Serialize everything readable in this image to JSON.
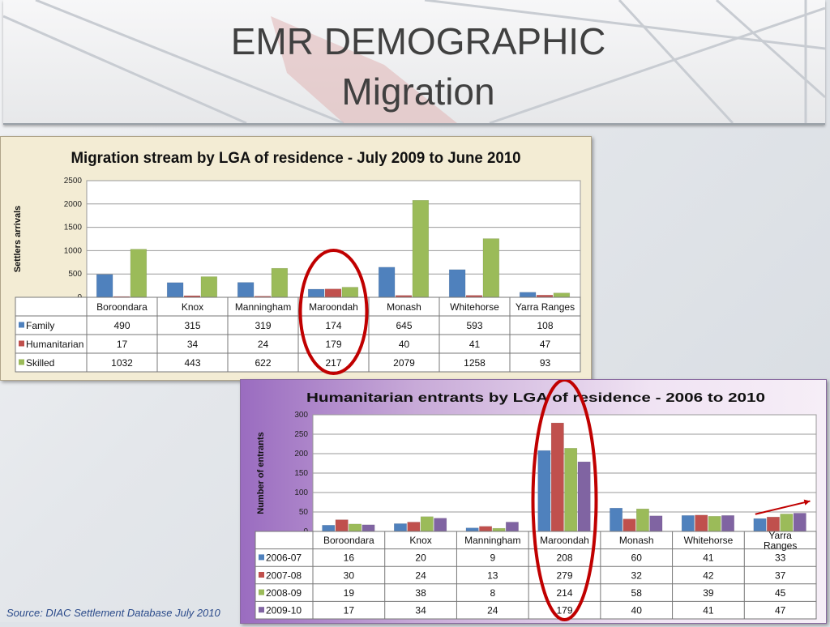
{
  "slide": {
    "title_line1": "EMR DEMOGRAPHIC",
    "title_line2": "Migration",
    "source": "Source: DIAC Settlement Database July 2010"
  },
  "colors": {
    "blue": "#4f81bd",
    "red": "#c0504d",
    "green": "#9bbb59",
    "purple": "#8064a2",
    "highlight": "#c00000"
  },
  "chart_data": [
    {
      "type": "bar",
      "title": "Migration stream by LGA of residence - July 2009 to June 2010",
      "ylabel": "Settlers arrivals",
      "xlabel": "",
      "ylim": [
        0,
        2500
      ],
      "yticks": [
        0,
        500,
        1000,
        1500,
        2000,
        2500
      ],
      "grid": true,
      "legend": "data-table",
      "categories": [
        "Boroondara",
        "Knox",
        "Manningham",
        "Maroondah",
        "Monash",
        "Whitehorse",
        "Yarra Ranges"
      ],
      "series": [
        {
          "name": "Family",
          "color": "#4f81bd",
          "values": [
            490,
            315,
            319,
            174,
            645,
            593,
            108
          ]
        },
        {
          "name": "Humanitarian",
          "color": "#c0504d",
          "values": [
            17,
            34,
            24,
            179,
            40,
            41,
            47
          ]
        },
        {
          "name": "Skilled",
          "color": "#9bbb59",
          "values": [
            1032,
            443,
            622,
            217,
            2079,
            1258,
            93
          ]
        }
      ],
      "highlight": "Maroondah"
    },
    {
      "type": "bar",
      "title": "Humanitarian entrants by LGA of residence - 2006 to 2010",
      "ylabel": "Number of entrants",
      "xlabel": "",
      "ylim": [
        0,
        300
      ],
      "yticks": [
        0,
        50,
        100,
        150,
        200,
        250,
        300
      ],
      "grid": true,
      "legend": "data-table",
      "categories": [
        "Boroondara",
        "Knox",
        "Manningham",
        "Maroondah",
        "Monash",
        "Whitehorse",
        "Yarra Ranges"
      ],
      "series": [
        {
          "name": "2006-07",
          "color": "#4f81bd",
          "values": [
            16,
            20,
            9,
            208,
            60,
            41,
            33
          ]
        },
        {
          "name": "2007-08",
          "color": "#c0504d",
          "values": [
            30,
            24,
            13,
            279,
            32,
            42,
            37
          ]
        },
        {
          "name": "2008-09",
          "color": "#9bbb59",
          "values": [
            19,
            38,
            8,
            214,
            58,
            39,
            45
          ]
        },
        {
          "name": "2009-10",
          "color": "#8064a2",
          "values": [
            17,
            34,
            24,
            179,
            40,
            41,
            47
          ]
        }
      ],
      "highlight": "Maroondah",
      "annotation": "trend-arrow-yarra-ranges"
    }
  ]
}
